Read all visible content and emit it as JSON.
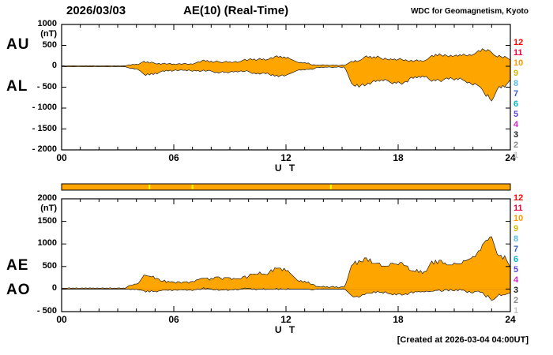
{
  "header": {
    "date": "2026/03/03",
    "title": "AE(10) (Real-Time)",
    "source": "WDC for Geomagnetism, Kyoto"
  },
  "footer": {
    "created": "[Created at 2026-03-04 04:00UT]"
  },
  "colors": {
    "fill": "#FFA500",
    "trace": "#1b1b1b",
    "axis": "#000000"
  },
  "station_legend": [
    {
      "n": "12",
      "color": "#ff0000"
    },
    {
      "n": "11",
      "color": "#e8003c"
    },
    {
      "n": "10",
      "color": "#ff9900"
    },
    {
      "n": "9",
      "color": "#d8b800"
    },
    {
      "n": "8",
      "color": "#55bbee"
    },
    {
      "n": "7",
      "color": "#3060d0"
    },
    {
      "n": "6",
      "color": "#00b8c8"
    },
    {
      "n": "5",
      "color": "#5a46dc"
    },
    {
      "n": "4",
      "color": "#dd22cc"
    },
    {
      "n": "3",
      "color": "#202020"
    },
    {
      "n": "2",
      "color": "#8a8a8a"
    },
    {
      "n": "1",
      "color": "#c4c4c4"
    }
  ],
  "station_bar": {
    "color": "#FFA500",
    "mark_color": "#FFFF00",
    "mark_hours": [
      4.7,
      7.0,
      14.4
    ]
  },
  "chart_data": [
    {
      "type": "area",
      "panel": "top",
      "xlabel": "U T",
      "ylabel_unit": "(nT)",
      "xlim": [
        0,
        24
      ],
      "ylim": [
        -2000,
        1000
      ],
      "x_step_hours": 0.1,
      "x_ticks": {
        "values": [
          0,
          6,
          12,
          18,
          24
        ],
        "labels": [
          "00",
          "06",
          "12",
          "18",
          "24"
        ]
      },
      "y_ticks": {
        "values": [
          1000,
          500,
          0,
          -500,
          -1000,
          -1500,
          -2000
        ],
        "labels": [
          "1000",
          "500",
          "0",
          "- 500",
          "- 1000",
          "- 1500",
          "- 2000"
        ]
      },
      "left_labels": [
        {
          "text": "AU",
          "at_value": 500
        },
        {
          "text": "AL",
          "at_value": -500
        }
      ],
      "series": [
        {
          "name": "AU",
          "values": [
            8,
            12,
            6,
            10,
            15,
            7,
            11,
            9,
            14,
            6,
            10,
            13,
            8,
            12,
            7,
            15,
            9,
            11,
            6,
            13,
            10,
            8,
            14,
            7,
            12,
            9,
            15,
            6,
            11,
            8,
            13,
            10,
            7,
            12,
            9,
            20,
            35,
            28,
            45,
            38,
            52,
            40,
            70,
            95,
            120,
            85,
            110,
            75,
            100,
            88,
            65,
            55,
            70,
            48,
            62,
            75,
            50,
            58,
            68,
            45,
            55,
            42,
            55,
            65,
            48,
            58,
            70,
            52,
            45,
            60,
            50,
            65,
            85,
            110,
            95,
            130,
            150,
            120,
            140,
            100,
            125,
            90,
            110,
            130,
            105,
            95,
            85,
            105,
            120,
            95,
            110,
            88,
            100,
            115,
            92,
            105,
            120,
            145,
            170,
            135,
            160,
            185,
            150,
            175,
            140,
            165,
            190,
            155,
            180,
            145,
            160,
            175,
            210,
            185,
            230,
            250,
            215,
            240,
            200,
            225,
            190,
            215,
            180,
            160,
            140,
            120,
            100,
            85,
            95,
            75,
            88,
            70,
            80,
            45,
            30,
            38,
            25,
            32,
            20,
            28,
            35,
            22,
            30,
            18,
            25,
            32,
            20,
            28,
            15,
            22,
            30,
            25,
            35,
            60,
            90,
            120,
            100,
            140,
            110,
            130,
            150,
            180,
            220,
            250,
            210,
            240,
            190,
            230,
            200,
            245,
            215,
            185,
            160,
            195,
            170,
            150,
            180,
            155,
            175,
            145,
            165,
            190,
            160,
            140,
            155,
            130,
            120,
            145,
            110,
            135,
            155,
            125,
            140,
            115,
            130,
            150,
            180,
            220,
            260,
            230,
            290,
            250,
            300,
            270,
            240,
            280,
            255,
            225,
            265,
            235,
            250,
            270,
            240,
            280,
            255,
            295,
            265,
            245,
            285,
            260,
            275,
            300,
            340,
            380,
            350,
            420,
            390,
            360,
            400,
            370,
            330,
            280,
            250,
            220,
            260,
            230,
            200,
            240,
            210,
            180,
            150
          ]
        },
        {
          "name": "AL",
          "values": [
            -10,
            -6,
            -12,
            -8,
            -14,
            -7,
            -11,
            -9,
            -13,
            -6,
            -10,
            -12,
            -8,
            -15,
            -7,
            -11,
            -9,
            -14,
            -6,
            -12,
            -8,
            -10,
            -13,
            -7,
            -11,
            -9,
            -15,
            -6,
            -12,
            -8,
            -10,
            -14,
            -7,
            -11,
            -9,
            -25,
            -40,
            -55,
            -45,
            -70,
            -60,
            -85,
            -110,
            -150,
            -190,
            -220,
            -180,
            -210,
            -170,
            -200,
            -160,
            -185,
            -150,
            -130,
            -110,
            -125,
            -95,
            -115,
            -90,
            -120,
            -100,
            -85,
            -110,
            -95,
            -80,
            -100,
            -90,
            -110,
            -85,
            -105,
            -120,
            -95,
            -115,
            -100,
            -130,
            -110,
            -90,
            -120,
            -105,
            -95,
            -115,
            -130,
            -155,
            -140,
            -165,
            -145,
            -125,
            -150,
            -135,
            -160,
            -140,
            -120,
            -140,
            -115,
            -135,
            -125,
            -110,
            -130,
            -120,
            -105,
            -125,
            -150,
            -175,
            -160,
            -185,
            -165,
            -190,
            -170,
            -155,
            -180,
            -160,
            -190,
            -220,
            -200,
            -240,
            -210,
            -250,
            -225,
            -205,
            -235,
            -215,
            -195,
            -180,
            -160,
            -140,
            -120,
            -100,
            -85,
            -95,
            -75,
            -88,
            -70,
            -80,
            -65,
            -75,
            -60,
            -35,
            -25,
            -30,
            -20,
            -28,
            -18,
            -25,
            -15,
            -22,
            -30,
            -18,
            -25,
            -12,
            -20,
            -28,
            -15,
            -80,
            -180,
            -300,
            -400,
            -450,
            -480,
            -430,
            -500,
            -460,
            -420,
            -470,
            -440,
            -400,
            -430,
            -380,
            -340,
            -370,
            -330,
            -360,
            -320,
            -350,
            -310,
            -340,
            -360,
            -390,
            -420,
            -380,
            -410,
            -370,
            -400,
            -430,
            -390,
            -360,
            -380,
            -300,
            -260,
            -290,
            -250,
            -280,
            -240,
            -270,
            -230,
            -260,
            -240,
            -290,
            -330,
            -360,
            -320,
            -350,
            -310,
            -340,
            -370,
            -330,
            -300,
            -280,
            -310,
            -270,
            -300,
            -330,
            -290,
            -320,
            -280,
            -310,
            -340,
            -360,
            -400,
            -380,
            -420,
            -450,
            -410,
            -440,
            -470,
            -500,
            -560,
            -640,
            -720,
            -680,
            -780,
            -830,
            -750,
            -650,
            -550,
            -480,
            -520,
            -460,
            -500,
            -430,
            -380,
            -320
          ]
        }
      ]
    },
    {
      "type": "area",
      "panel": "bottom",
      "xlabel": "U T",
      "ylabel_unit": "(nT)",
      "xlim": [
        0,
        24
      ],
      "ylim": [
        -500,
        2000
      ],
      "x_step_hours": 0.1,
      "x_ticks": {
        "values": [
          0,
          6,
          12,
          18,
          24
        ],
        "labels": [
          "00",
          "06",
          "12",
          "18",
          "24"
        ]
      },
      "y_ticks": {
        "values": [
          2000,
          1500,
          1000,
          500,
          0,
          -500
        ],
        "labels": [
          "2000",
          "1500",
          "1000",
          "500",
          "0",
          "- 500"
        ]
      },
      "left_labels": [
        {
          "text": "AE",
          "at_value": 500
        },
        {
          "text": "AO",
          "at_value": -50
        }
      ],
      "series": [
        {
          "name": "AE",
          "values": [
            18,
            18,
            18,
            18,
            29,
            14,
            22,
            18,
            27,
            12,
            20,
            25,
            16,
            27,
            14,
            26,
            18,
            25,
            12,
            25,
            18,
            18,
            27,
            14,
            23,
            18,
            30,
            12,
            23,
            16,
            23,
            24,
            14,
            23,
            18,
            45,
            75,
            83,
            90,
            108,
            112,
            125,
            180,
            245,
            310,
            305,
            290,
            285,
            270,
            288,
            225,
            240,
            220,
            178,
            172,
            200,
            145,
            173,
            158,
            165,
            155,
            127,
            165,
            160,
            128,
            158,
            160,
            162,
            130,
            165,
            170,
            160,
            200,
            210,
            225,
            240,
            240,
            240,
            245,
            195,
            240,
            220,
            265,
            270,
            270,
            240,
            210,
            255,
            255,
            255,
            250,
            208,
            240,
            230,
            227,
            230,
            230,
            275,
            290,
            240,
            285,
            335,
            325,
            335,
            325,
            330,
            380,
            325,
            335,
            325,
            320,
            365,
            430,
            385,
            470,
            460,
            465,
            465,
            405,
            460,
            405,
            410,
            360,
            320,
            280,
            240,
            200,
            170,
            190,
            150,
            176,
            140,
            160,
            110,
            105,
            98,
            60,
            57,
            50,
            48,
            63,
            40,
            55,
            33,
            47,
            62,
            38,
            53,
            27,
            42,
            58,
            40,
            115,
            240,
            390,
            520,
            550,
            620,
            540,
            630,
            610,
            600,
            690,
            690,
            610,
            670,
            570,
            570,
            570,
            575,
            575,
            505,
            510,
            505,
            510,
            510,
            570,
            575,
            555,
            555,
            535,
            590,
            590,
            530,
            515,
            510,
            420,
            405,
            400,
            385,
            435,
            365,
            410,
            345,
            390,
            390,
            470,
            550,
            620,
            550,
            640,
            560,
            640,
            640,
            570,
            580,
            535,
            535,
            535,
            535,
            580,
            560,
            560,
            560,
            565,
            635,
            625,
            645,
            665,
            680,
            725,
            710,
            780,
            850,
            850,
            980,
            1030,
            1080,
            1080,
            1150,
            1160,
            1030,
            900,
            770,
            740,
            750,
            660,
            740,
            640,
            560,
            470
          ]
        },
        {
          "name": "AO",
          "values": [
            -1,
            3,
            -3,
            1,
            1,
            0,
            0,
            0,
            1,
            0,
            0,
            1,
            0,
            -2,
            0,
            2,
            0,
            -2,
            0,
            1,
            1,
            -1,
            1,
            0,
            1,
            0,
            0,
            0,
            -1,
            0,
            2,
            -2,
            0,
            1,
            0,
            -3,
            -3,
            -14,
            0,
            -16,
            -4,
            -23,
            -20,
            -28,
            -35,
            -68,
            -35,
            -68,
            -35,
            -56,
            -48,
            -65,
            -40,
            -41,
            -24,
            -25,
            -23,
            -29,
            -11,
            -38,
            -23,
            -22,
            -28,
            -15,
            -16,
            -21,
            -10,
            -29,
            -20,
            -23,
            -35,
            -15,
            -15,
            5,
            -18,
            10,
            30,
            0,
            18,
            3,
            5,
            -20,
            -23,
            -5,
            -30,
            -25,
            -20,
            -23,
            -8,
            -33,
            -15,
            -16,
            -20,
            0,
            -22,
            -10,
            5,
            8,
            25,
            15,
            18,
            18,
            -13,
            8,
            -23,
            0,
            0,
            -8,
            13,
            -18,
            0,
            -8,
            -5,
            -8,
            -5,
            20,
            -18,
            8,
            -3,
            -5,
            -13,
            10,
            0,
            0,
            0,
            0,
            0,
            0,
            0,
            0,
            0,
            0,
            0,
            -10,
            -23,
            -11,
            -5,
            4,
            -5,
            4,
            4,
            2,
            3,
            2,
            2,
            1,
            1,
            2,
            2,
            1,
            1,
            5,
            -23,
            -60,
            -105,
            -140,
            -175,
            -170,
            -160,
            -185,
            -155,
            -120,
            -125,
            -95,
            -95,
            -95,
            -95,
            -55,
            -85,
            -43,
            -73,
            -68,
            -95,
            -58,
            -85,
            -105,
            -105,
            -133,
            -103,
            -133,
            -103,
            -105,
            -135,
            -125,
            -103,
            -125,
            -90,
            -58,
            -90,
            -58,
            -63,
            -58,
            -65,
            -58,
            -65,
            -45,
            -55,
            -55,
            -50,
            -45,
            -30,
            -30,
            -20,
            -50,
            -45,
            -10,
            -13,
            -43,
            -3,
            -33,
            -40,
            -10,
            -40,
            0,
            -28,
            -23,
            -48,
            -78,
            -48,
            -80,
            -88,
            -55,
            -50,
            -45,
            -75,
            -70,
            -125,
            -180,
            -140,
            -205,
            -250,
            -235,
            -200,
            -165,
            -110,
            -145,
            -130,
            -130,
            -110,
            -100,
            -85
          ]
        }
      ]
    }
  ]
}
